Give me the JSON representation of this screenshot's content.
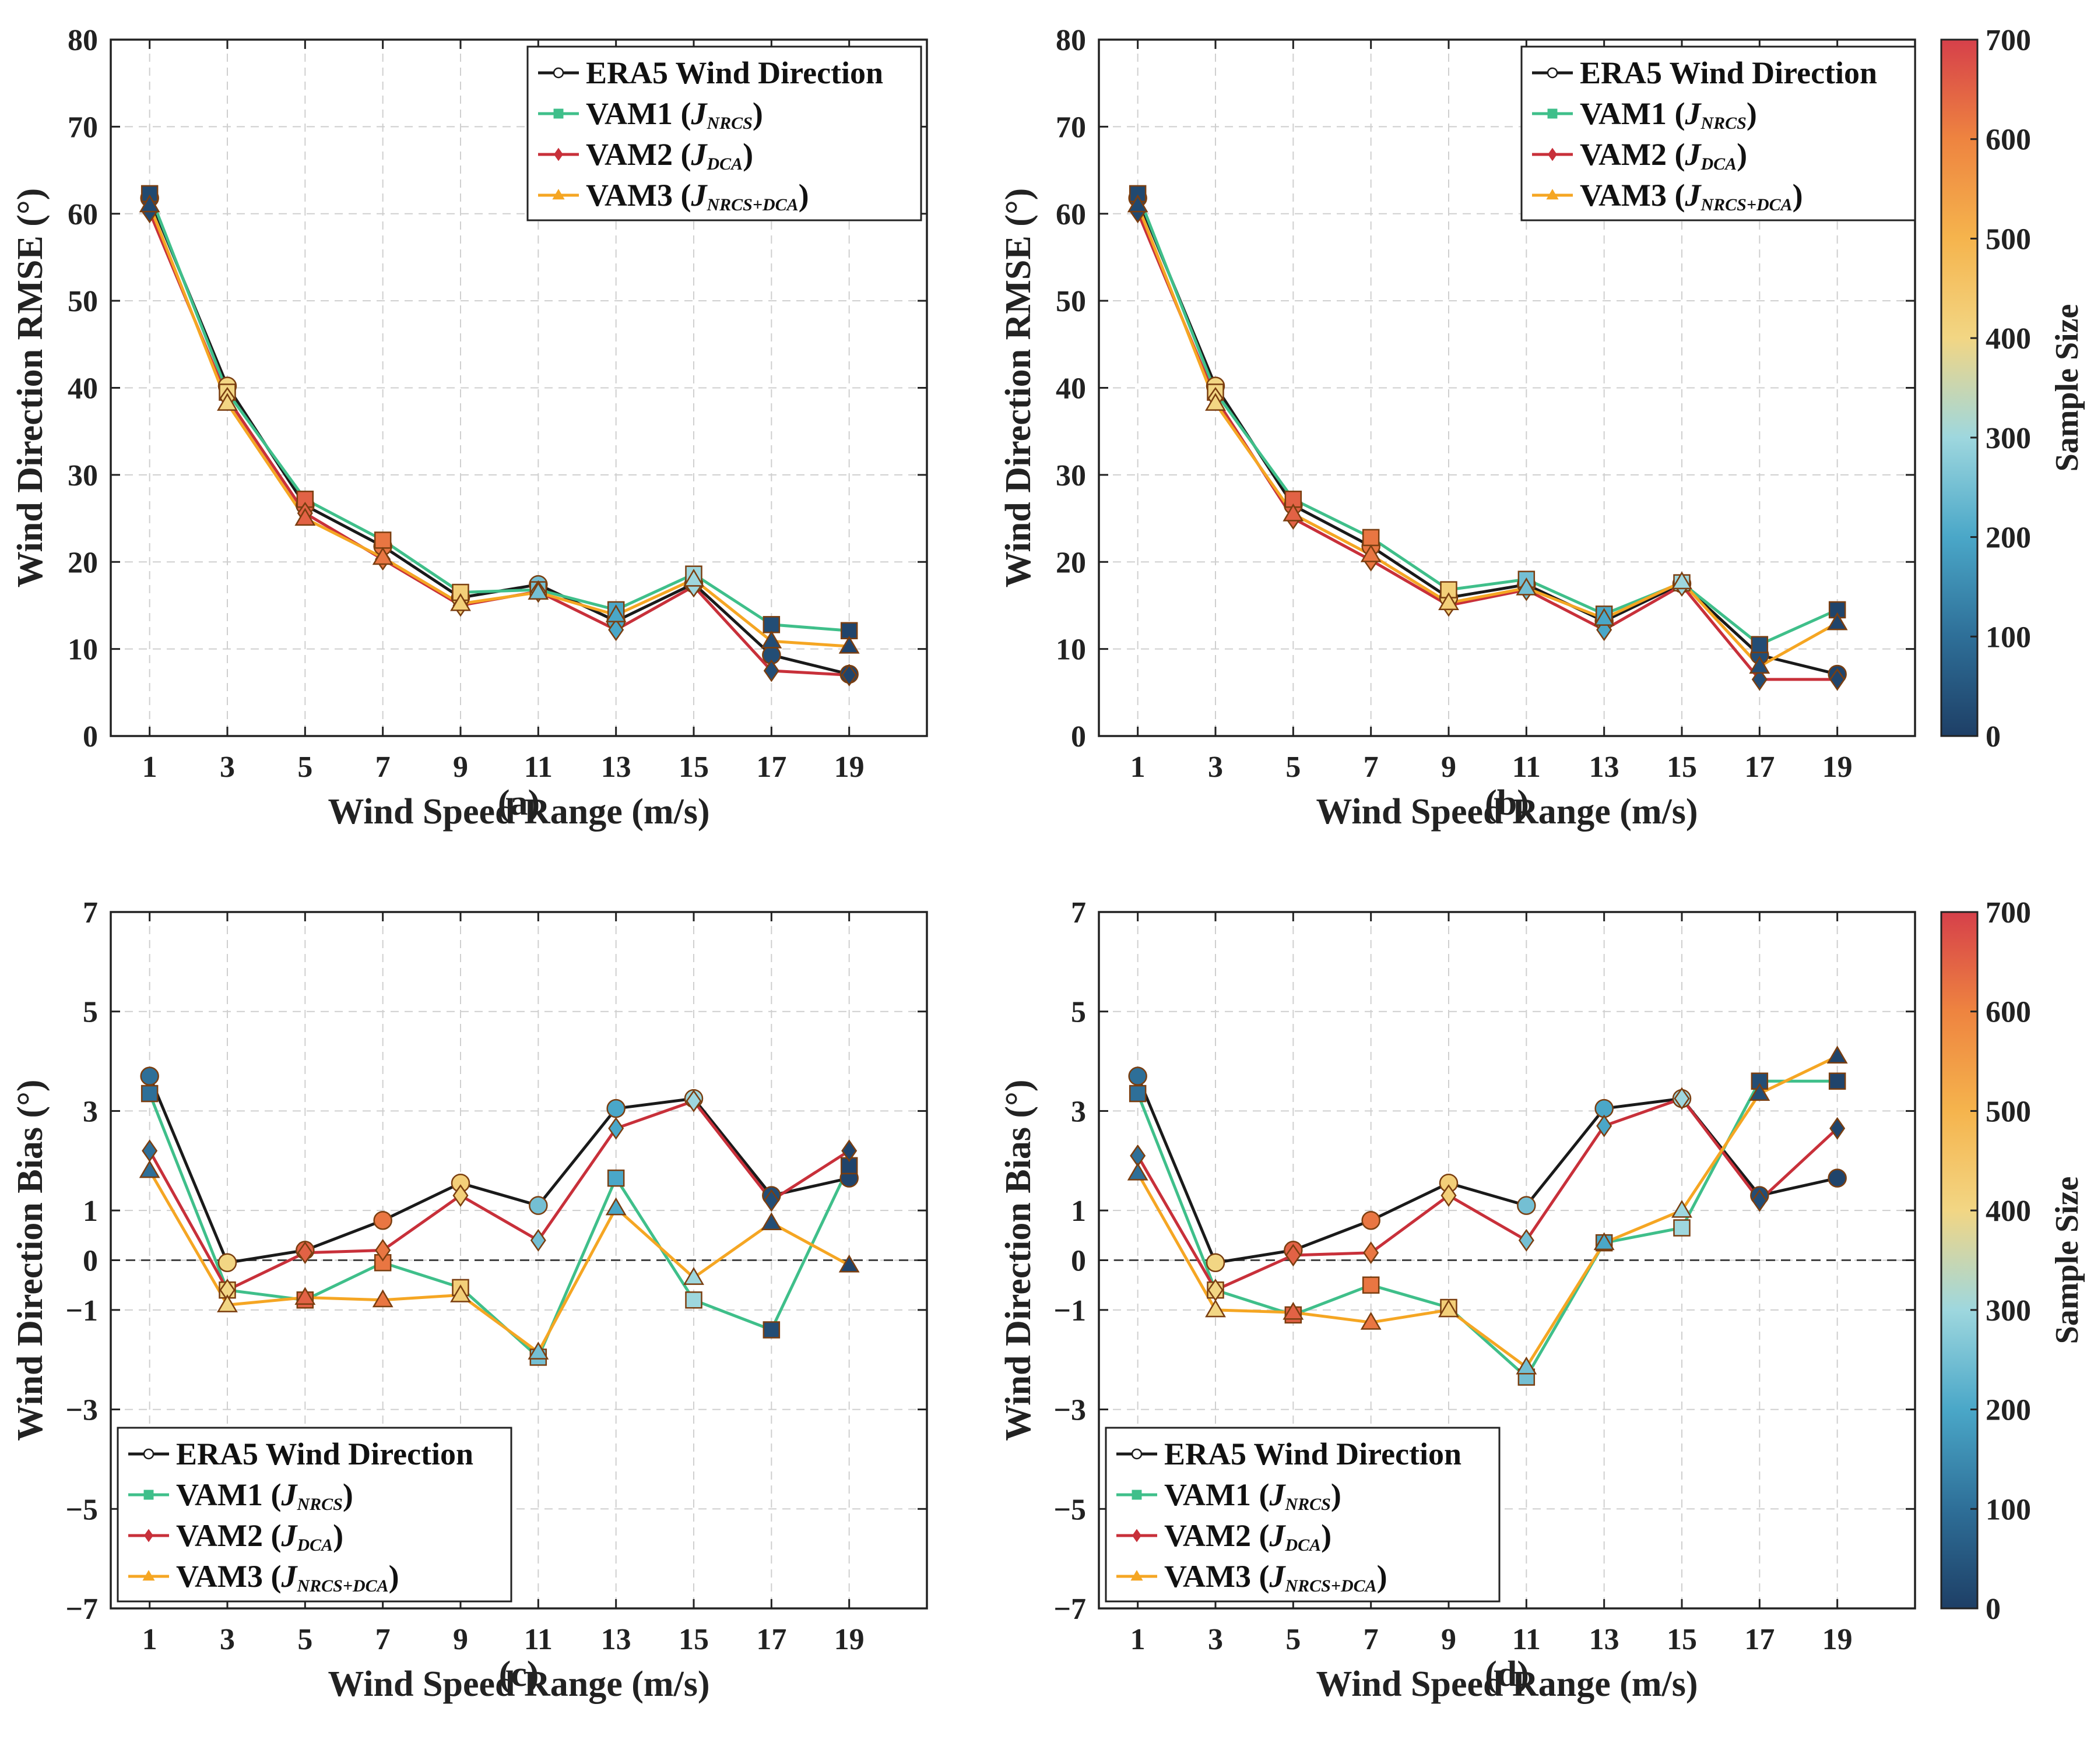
{
  "figure": {
    "xlabel": "Wind Speed Range (m/s)",
    "colorbar_label": "Sample Size",
    "colorbar_ticks": [
      "0",
      "100",
      "200",
      "300",
      "400",
      "500",
      "600",
      "700"
    ],
    "colorbar_range": [
      0,
      700
    ],
    "colormap": [
      "#1e3f66",
      "#2e6f98",
      "#4aa7c8",
      "#9ed7de",
      "#f2d684",
      "#f5b44d",
      "#ee8440",
      "#d6404a"
    ],
    "series_styles": [
      {
        "name": "ERA5 Wind Direction",
        "color": "#1a1a1a",
        "marker": "circle"
      },
      {
        "name": "VAM1",
        "color": "#3fbf8a",
        "marker": "square"
      },
      {
        "name": "VAM2",
        "color": "#c8303a",
        "marker": "diamond"
      },
      {
        "name": "VAM3",
        "color": "#f5a623",
        "marker": "triangle"
      }
    ],
    "legend": [
      {
        "main": "ERA5 Wind Direction",
        "j": "",
        "sub": ""
      },
      {
        "main": "VAM1 (",
        "j": "J",
        "sub": "NRCS",
        "close": ")"
      },
      {
        "main": "VAM2 (",
        "j": "J",
        "sub": "DCA",
        "close": ")"
      },
      {
        "main": "VAM3 (",
        "j": "J",
        "sub": "NRCS+DCA",
        "close": ")"
      }
    ]
  },
  "chart_data": [
    {
      "type": "line",
      "panel_label": "(a)",
      "title": "",
      "xlabel": "Wind Speed Range (m/s)",
      "ylabel": "Wind Direction RMSE (°)",
      "x": [
        1,
        3,
        5,
        7,
        9,
        11,
        13,
        15,
        17,
        19
      ],
      "xticks": [
        "1",
        "3",
        "5",
        "7",
        "9",
        "11",
        "13",
        "15",
        "17",
        "19"
      ],
      "yticks": [
        0,
        10,
        20,
        30,
        40,
        50,
        60,
        70,
        80
      ],
      "ylim": [
        0,
        80
      ],
      "legend_position": "top-right",
      "sample_size": [
        20,
        400,
        650,
        620,
        420,
        250,
        200,
        300,
        30,
        10
      ],
      "series": [
        {
          "name": "ERA5 Wind Direction",
          "values": [
            61.8,
            40.2,
            26.5,
            21.8,
            15.9,
            17.4,
            13.2,
            17.5,
            9.3,
            7.1
          ]
        },
        {
          "name": "VAM1 (JNRCS)",
          "values": [
            62.3,
            39.5,
            27.2,
            22.5,
            16.5,
            16.8,
            14.5,
            18.6,
            12.8,
            12.1
          ]
        },
        {
          "name": "VAM2 (JDCA)",
          "values": [
            60.2,
            38.8,
            25.6,
            20.3,
            15.0,
            16.6,
            12.2,
            17.2,
            7.5,
            7.0
          ]
        },
        {
          "name": "VAM3 (JNRCS+DCA)",
          "values": [
            61.0,
            38.2,
            25.0,
            20.5,
            15.2,
            16.5,
            13.9,
            18.0,
            10.9,
            10.3
          ]
        }
      ]
    },
    {
      "type": "line",
      "panel_label": "(b)",
      "title": "",
      "xlabel": "Wind Speed Range (m/s)",
      "ylabel": "Wind Direction RMSE (°)",
      "x": [
        1,
        3,
        5,
        7,
        9,
        11,
        13,
        15,
        17,
        19
      ],
      "xticks": [
        "1",
        "3",
        "5",
        "7",
        "9",
        "11",
        "13",
        "15",
        "17",
        "19"
      ],
      "yticks": [
        0,
        10,
        20,
        30,
        40,
        50,
        60,
        70,
        80
      ],
      "ylim": [
        0,
        80
      ],
      "legend_position": "top-left",
      "sample_size": [
        20,
        400,
        650,
        620,
        420,
        250,
        200,
        300,
        30,
        10
      ],
      "series": [
        {
          "name": "ERA5 Wind Direction",
          "values": [
            61.8,
            40.2,
            26.5,
            21.8,
            15.9,
            17.4,
            13.2,
            17.5,
            9.3,
            7.1
          ]
        },
        {
          "name": "VAM1 (JNRCS)",
          "values": [
            62.3,
            39.5,
            27.2,
            22.8,
            16.8,
            18.0,
            14.0,
            17.6,
            10.5,
            14.5
          ]
        },
        {
          "name": "VAM2 (JDCA)",
          "values": [
            60.2,
            38.8,
            25.0,
            20.2,
            15.0,
            16.8,
            12.2,
            17.3,
            6.5,
            6.5
          ]
        },
        {
          "name": "VAM3 (JNRCS+DCA)",
          "values": [
            61.0,
            38.2,
            25.5,
            20.8,
            15.3,
            17.0,
            13.5,
            17.7,
            8.0,
            13.0
          ]
        }
      ]
    },
    {
      "type": "line",
      "panel_label": "(c)",
      "title": "",
      "xlabel": "Wind Speed Range (m/s)",
      "ylabel": "Wind Direction Bias (°)",
      "x": [
        1,
        3,
        5,
        7,
        9,
        11,
        13,
        15,
        17,
        19
      ],
      "xticks": [
        "1",
        "3",
        "5",
        "7",
        "9",
        "11",
        "13",
        "15",
        "17",
        "19"
      ],
      "yticks": [
        -7,
        -5,
        -3,
        -1,
        0,
        1,
        3,
        5,
        7
      ],
      "ylim": [
        -7,
        7
      ],
      "legend_position": "bottom-left",
      "sample_size": [
        100,
        400,
        650,
        620,
        420,
        250,
        200,
        300,
        30,
        10
      ],
      "series": [
        {
          "name": "ERA5 Wind Direction",
          "values": [
            3.7,
            -0.05,
            0.2,
            0.8,
            1.55,
            1.1,
            3.05,
            3.25,
            1.3,
            1.65
          ]
        },
        {
          "name": "VAM1 (JNRCS)",
          "values": [
            3.35,
            -0.6,
            -0.8,
            -0.05,
            -0.55,
            -1.95,
            1.65,
            -0.8,
            -1.4,
            1.9
          ]
        },
        {
          "name": "VAM2 (JDCA)",
          "values": [
            2.2,
            -0.6,
            0.15,
            0.2,
            1.3,
            0.4,
            2.65,
            3.2,
            1.2,
            2.2
          ]
        },
        {
          "name": "VAM3 (JNRCS+DCA)",
          "values": [
            1.8,
            -0.9,
            -0.75,
            -0.8,
            -0.7,
            -1.85,
            1.05,
            -0.35,
            0.75,
            -0.1
          ]
        }
      ]
    },
    {
      "type": "line",
      "panel_label": "(d)",
      "title": "",
      "xlabel": "Wind Speed Range (m/s)",
      "ylabel": "Wind Direction Bias (°)",
      "x": [
        1,
        3,
        5,
        7,
        9,
        11,
        13,
        15,
        17,
        19
      ],
      "xticks": [
        "1",
        "3",
        "5",
        "7",
        "9",
        "11",
        "13",
        "15",
        "17",
        "19"
      ],
      "yticks": [
        -7,
        -5,
        -3,
        -1,
        0,
        1,
        3,
        5,
        7
      ],
      "ylim": [
        -7,
        7
      ],
      "legend_position": "bottom-left",
      "sample_size": [
        100,
        400,
        650,
        620,
        420,
        250,
        200,
        300,
        30,
        10
      ],
      "series": [
        {
          "name": "ERA5 Wind Direction",
          "values": [
            3.7,
            -0.05,
            0.2,
            0.8,
            1.55,
            1.1,
            3.05,
            3.25,
            1.3,
            1.65
          ]
        },
        {
          "name": "VAM1 (JNRCS)",
          "values": [
            3.35,
            -0.6,
            -1.1,
            -0.5,
            -0.95,
            -2.35,
            0.35,
            0.65,
            3.6,
            3.6
          ]
        },
        {
          "name": "VAM2 (JDCA)",
          "values": [
            2.1,
            -0.6,
            0.1,
            0.15,
            1.3,
            0.4,
            2.7,
            3.25,
            1.2,
            2.65
          ]
        },
        {
          "name": "VAM3 (JNRCS+DCA)",
          "values": [
            1.75,
            -1.0,
            -1.05,
            -1.25,
            -1.0,
            -2.15,
            0.35,
            1.0,
            3.35,
            4.1
          ]
        }
      ]
    }
  ]
}
